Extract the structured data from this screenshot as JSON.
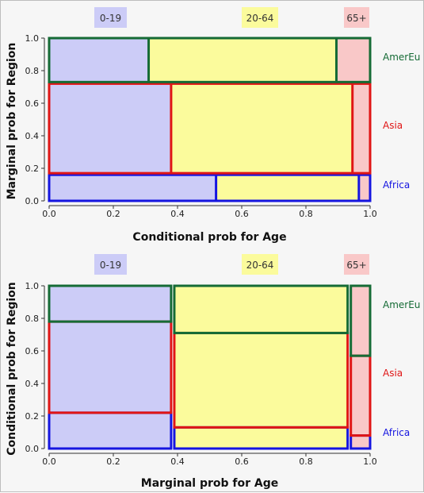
{
  "chart_data": [
    {
      "type": "mosaic",
      "xlabel": "Conditional prob for Age",
      "ylabel": "Marginal prob for Region",
      "xlim": [
        0,
        1
      ],
      "ylim": [
        0,
        1
      ],
      "xticks": [
        "0.0",
        "0.2",
        "0.4",
        "0.6",
        "0.8",
        "1.0"
      ],
      "yticks": [
        "0.0",
        "0.2",
        "0.4",
        "0.6",
        "0.8",
        "1.0"
      ],
      "age_groups": [
        "0-19",
        "20-64",
        "65+"
      ],
      "regions": [
        {
          "name": "Africa",
          "color": "#1515e0",
          "y0": 0.0,
          "y1": 0.16,
          "cuts": [
            0.52,
            0.965
          ]
        },
        {
          "name": "Asia",
          "color": "#e01515",
          "y0": 0.17,
          "y1": 0.72,
          "cuts": [
            0.38,
            0.945
          ]
        },
        {
          "name": "AmerEu",
          "color": "#156b35",
          "y0": 0.73,
          "y1": 1.0,
          "cuts": [
            0.31,
            0.895
          ]
        }
      ]
    },
    {
      "type": "mosaic",
      "xlabel": "Marginal prob for Age",
      "ylabel": "Conditional prob for Region",
      "xlim": [
        0,
        1
      ],
      "ylim": [
        0,
        1
      ],
      "xticks": [
        "0.0",
        "0.2",
        "0.4",
        "0.6",
        "0.8",
        "1.0"
      ],
      "yticks": [
        "0.0",
        "0.2",
        "0.4",
        "0.6",
        "0.8",
        "1.0"
      ],
      "age_groups": [
        "0-19",
        "20-64",
        "65+"
      ],
      "columns": [
        {
          "name": "0-19",
          "x0": 0.0,
          "x1": 0.38,
          "cuts": [
            0.22,
            0.78
          ]
        },
        {
          "name": "20-64",
          "x0": 0.39,
          "x1": 0.93,
          "cuts": [
            0.13,
            0.71
          ]
        },
        {
          "name": "65+",
          "x0": 0.94,
          "x1": 1.0,
          "cuts": [
            0.08,
            0.57
          ]
        }
      ],
      "regions": [
        {
          "name": "Africa",
          "color": "#1515e0"
        },
        {
          "name": "Asia",
          "color": "#e01515"
        },
        {
          "name": "AmerEu",
          "color": "#156b35"
        }
      ]
    }
  ],
  "colors": {
    "age": [
      "#ccccf7",
      "#fbfb9c",
      "#f9c8c8"
    ]
  }
}
